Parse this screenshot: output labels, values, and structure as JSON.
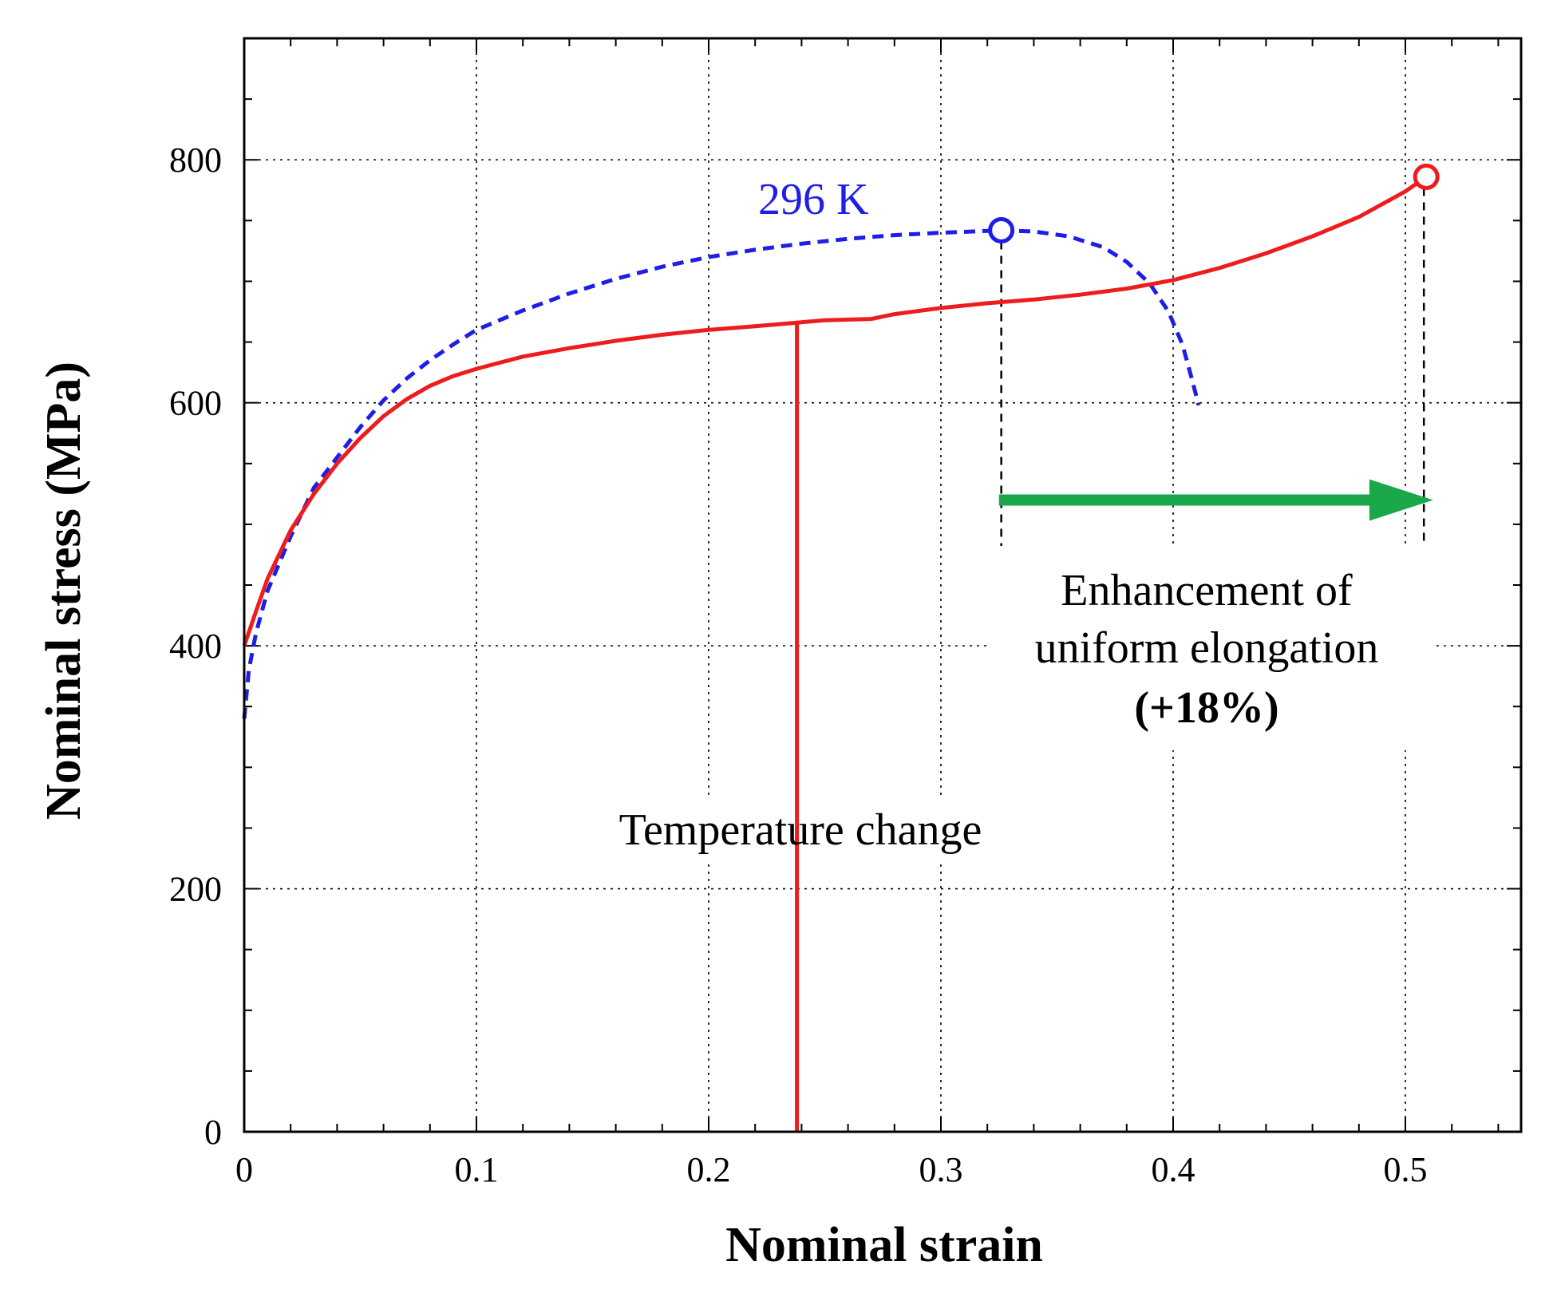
{
  "chart_data": {
    "type": "line",
    "title": "",
    "xlabel": "Nominal strain",
    "ylabel": "Nominal stress (MPa)",
    "xlim": [
      0,
      0.55
    ],
    "ylim": [
      0,
      900
    ],
    "x_ticks": [
      0,
      0.1,
      0.2,
      0.3,
      0.4,
      0.5
    ],
    "x_tick_labels": [
      "0",
      "0.1",
      "0.2",
      "0.3",
      "0.4",
      "0.5"
    ],
    "y_ticks": [
      0,
      200,
      400,
      600,
      800
    ],
    "y_tick_labels": [
      "0",
      "200",
      "400",
      "600",
      "800"
    ],
    "x_minor_step": 0.02,
    "y_minor_step": 50,
    "grid": true,
    "series": [
      {
        "name": "296 K",
        "color": "#1e1ee6",
        "style": "dashed",
        "points": [
          [
            0,
            340
          ],
          [
            0.002,
            380
          ],
          [
            0.005,
            410
          ],
          [
            0.01,
            445
          ],
          [
            0.02,
            490
          ],
          [
            0.03,
            530
          ],
          [
            0.04,
            555
          ],
          [
            0.05,
            580
          ],
          [
            0.06,
            602
          ],
          [
            0.07,
            620
          ],
          [
            0.08,
            635
          ],
          [
            0.09,
            648
          ],
          [
            0.1,
            660
          ],
          [
            0.12,
            676
          ],
          [
            0.14,
            690
          ],
          [
            0.16,
            702
          ],
          [
            0.18,
            712
          ],
          [
            0.2,
            720
          ],
          [
            0.22,
            726
          ],
          [
            0.24,
            731
          ],
          [
            0.26,
            735
          ],
          [
            0.28,
            738
          ],
          [
            0.3,
            740
          ],
          [
            0.32,
            741.5
          ],
          [
            0.326,
            742
          ],
          [
            0.34,
            741
          ],
          [
            0.355,
            737
          ],
          [
            0.37,
            728
          ],
          [
            0.38,
            716
          ],
          [
            0.39,
            698
          ],
          [
            0.398,
            675
          ],
          [
            0.404,
            648
          ],
          [
            0.408,
            620
          ],
          [
            0.411,
            598
          ]
        ],
        "end_marker": [
          0.326,
          742
        ]
      },
      {
        "name": "Temperature change",
        "color": "#ee1c1c",
        "style": "solid",
        "points": [
          [
            0,
            400
          ],
          [
            0.005,
            428
          ],
          [
            0.01,
            455
          ],
          [
            0.02,
            495
          ],
          [
            0.03,
            525
          ],
          [
            0.04,
            550
          ],
          [
            0.05,
            571
          ],
          [
            0.06,
            589
          ],
          [
            0.07,
            603
          ],
          [
            0.08,
            614
          ],
          [
            0.09,
            622
          ],
          [
            0.1,
            628
          ],
          [
            0.12,
            638
          ],
          [
            0.14,
            645
          ],
          [
            0.16,
            651
          ],
          [
            0.18,
            656
          ],
          [
            0.2,
            660
          ],
          [
            0.22,
            663
          ],
          [
            0.238,
            666
          ],
          [
            0.25,
            668
          ],
          [
            0.27,
            669
          ],
          [
            0.28,
            673
          ],
          [
            0.3,
            678
          ],
          [
            0.32,
            682
          ],
          [
            0.34,
            685
          ],
          [
            0.36,
            689
          ],
          [
            0.38,
            694
          ],
          [
            0.4,
            701
          ],
          [
            0.42,
            711
          ],
          [
            0.44,
            723
          ],
          [
            0.46,
            737
          ],
          [
            0.48,
            753
          ],
          [
            0.5,
            774
          ],
          [
            0.509,
            786
          ]
        ],
        "end_marker": [
          0.509,
          786
        ]
      }
    ],
    "temperature_change_strain": 0.238,
    "elongation_arrow": {
      "from": 0.325,
      "to": 0.512,
      "stress": 520,
      "color": "#1aa84a"
    },
    "annotations": {
      "series_label": "296 K",
      "temperature_change": "Temperature change",
      "enhancement_line1": "Enhancement of",
      "enhancement_line2": "uniform elongation",
      "enhancement_value": "(+18%)"
    }
  }
}
